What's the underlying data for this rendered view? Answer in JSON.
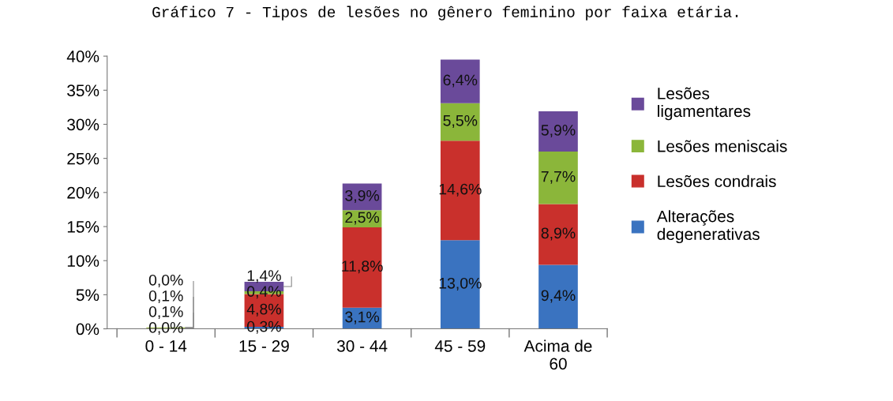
{
  "chart_data": {
    "type": "bar",
    "stacked": true,
    "title": "Gráfico 7 - Tipos de lesões no gênero feminino por faixa etária.",
    "categories": [
      "0 - 14",
      "15 - 29",
      "30 - 44",
      "45 - 59",
      "Acima de 60"
    ],
    "series": [
      {
        "name": "Alterações degenerativas",
        "color": "#3a73c0",
        "values": [
          0.0,
          0.3,
          3.1,
          13.0,
          9.4
        ],
        "value_labels": [
          "0,0%",
          "0,3%",
          "3,1%",
          "13,0%",
          "9,4%"
        ]
      },
      {
        "name": "Lesões condrais",
        "color": "#c9302c",
        "values": [
          0.1,
          4.8,
          11.8,
          14.6,
          8.9
        ],
        "value_labels": [
          "0,1%",
          "4,8%",
          "11,8%",
          "14,6%",
          "8,9%"
        ]
      },
      {
        "name": "Lesões meniscais",
        "color": "#8bb63a",
        "values": [
          0.1,
          0.4,
          2.5,
          5.5,
          7.7
        ],
        "value_labels": [
          "0,1%",
          "0,4%",
          "2,5%",
          "5,5%",
          "7,7%"
        ]
      },
      {
        "name": "Lesões ligamentares",
        "color": "#6a4a9a",
        "values": [
          0.0,
          1.4,
          3.9,
          6.4,
          5.9
        ],
        "value_labels": [
          "0,0%",
          "1,4%",
          "3,9%",
          "6,4%",
          "5,9%"
        ]
      }
    ],
    "ylim": [
      0,
      40
    ],
    "yticks": [
      {
        "value": 0,
        "label": "0%"
      },
      {
        "value": 5,
        "label": "5%"
      },
      {
        "value": 10,
        "label": "10%"
      },
      {
        "value": 15,
        "label": "15%"
      },
      {
        "value": 20,
        "label": "20%"
      },
      {
        "value": 25,
        "label": "25%"
      },
      {
        "value": 30,
        "label": "30%"
      },
      {
        "value": 35,
        "label": "35%"
      },
      {
        "value": 40,
        "label": "40%"
      }
    ],
    "grid": false,
    "legend": "right"
  }
}
